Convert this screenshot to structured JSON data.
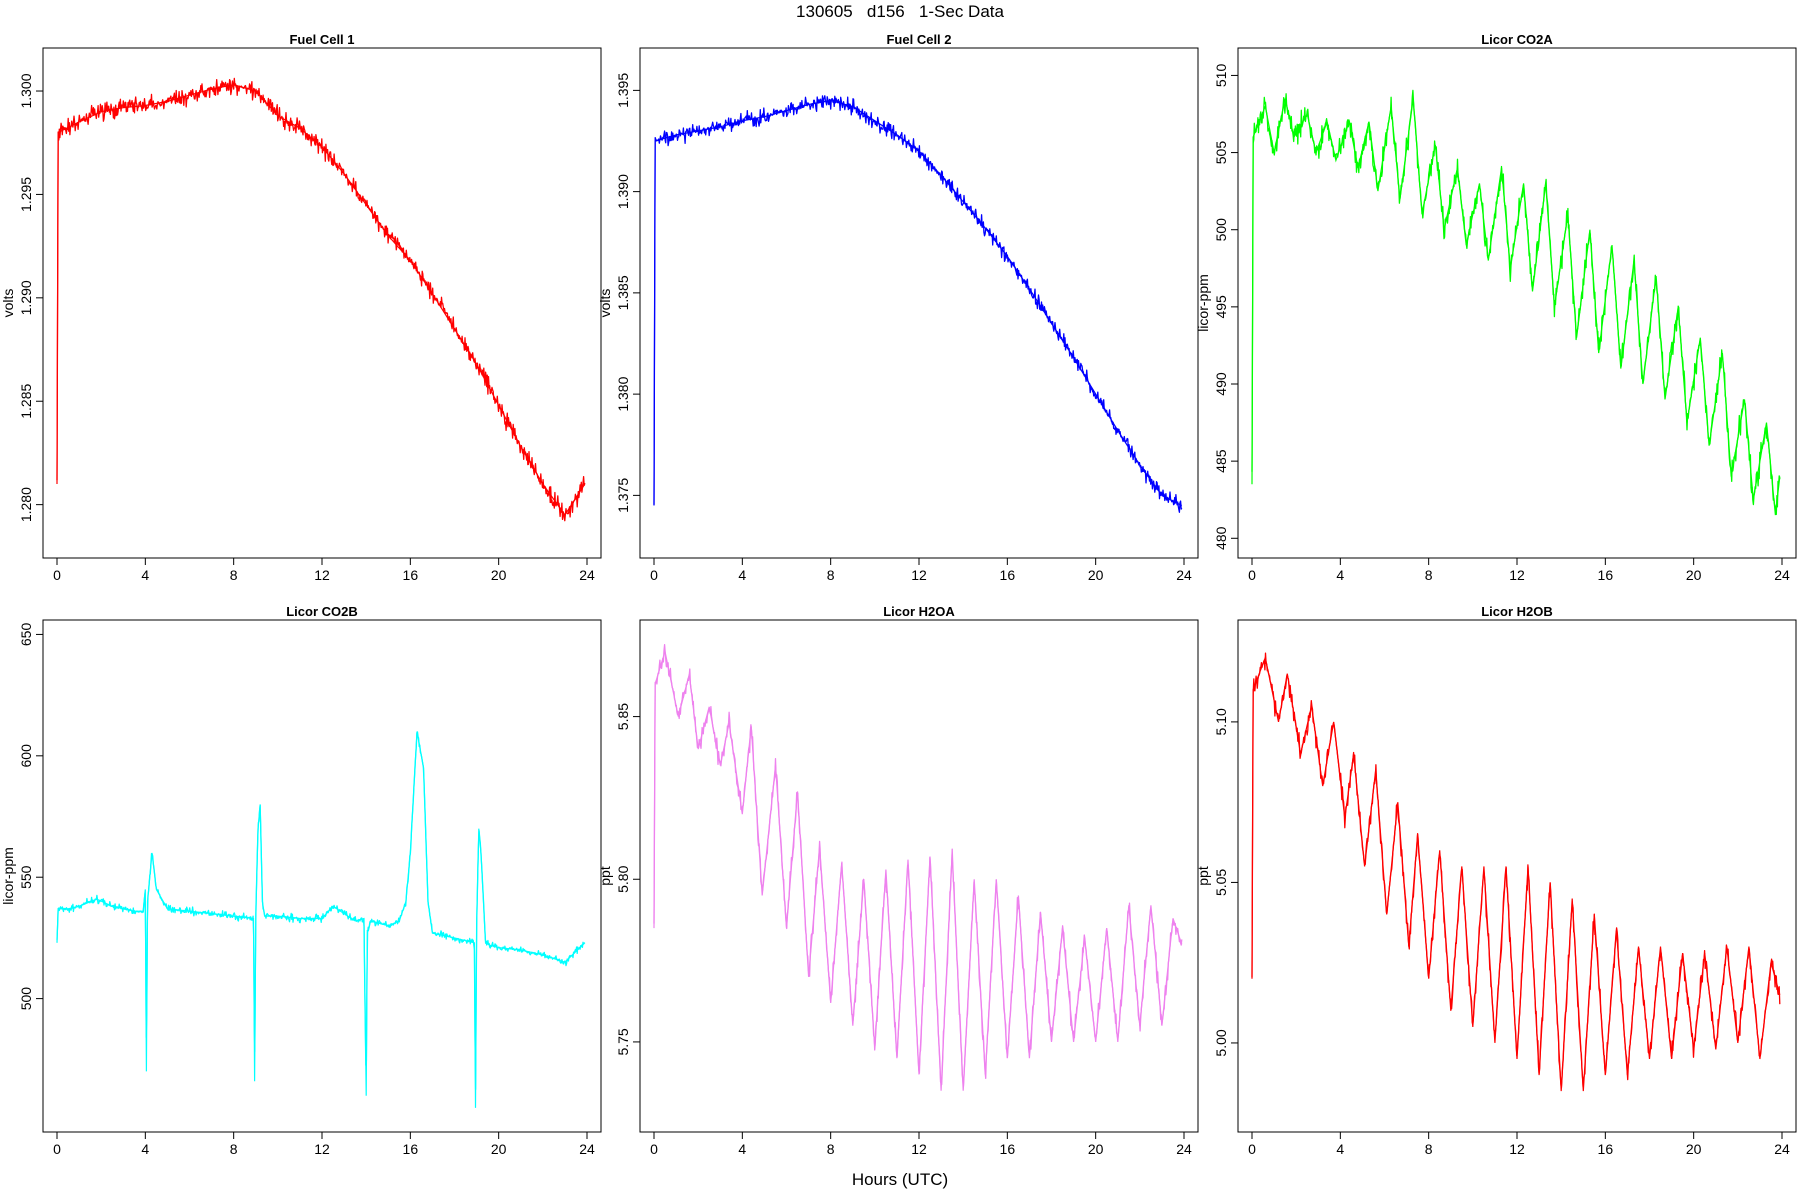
{
  "figure": {
    "title": "130605   d156   1-Sec Data",
    "xlabel": "Hours (UTC)"
  },
  "chart_data": [
    {
      "type": "line",
      "title": "Fuel Cell 1",
      "ylabel": "volts",
      "color": "#ff0000",
      "xlim": [
        0,
        24
      ],
      "ylim": [
        1.278,
        1.3015
      ],
      "xticks": [
        0,
        4,
        8,
        12,
        16,
        20,
        24
      ],
      "yticks": [
        1.28,
        1.285,
        1.29,
        1.295,
        1.3
      ],
      "ytick_labels": [
        "1.280",
        "1.285",
        "1.290",
        "1.295",
        "1.300"
      ],
      "noise": 0.0006,
      "x": [
        0,
        0.05,
        1,
        2,
        3,
        4,
        5,
        6,
        7,
        8,
        9,
        10,
        11,
        12,
        13,
        14,
        15,
        16,
        17,
        18,
        19,
        20,
        21,
        22,
        23,
        23.9
      ],
      "y": [
        1.281,
        1.298,
        1.2985,
        1.299,
        1.2992,
        1.2993,
        1.2995,
        1.2998,
        1.3001,
        1.3003,
        1.3,
        1.2988,
        1.2982,
        1.2973,
        1.296,
        1.2945,
        1.293,
        1.2918,
        1.2902,
        1.2885,
        1.2868,
        1.2848,
        1.2828,
        1.281,
        1.2795,
        1.281
      ]
    },
    {
      "type": "line",
      "title": "Fuel Cell 2",
      "ylabel": "volts",
      "color": "#0000ff",
      "xlim": [
        0,
        24
      ],
      "ylim": [
        1.3725,
        1.3965
      ],
      "xticks": [
        0,
        4,
        8,
        12,
        16,
        20,
        24
      ],
      "yticks": [
        1.375,
        1.38,
        1.385,
        1.39,
        1.395
      ],
      "ytick_labels": [
        "1.375",
        "1.380",
        "1.385",
        "1.390",
        "1.395"
      ],
      "noise": 0.0005,
      "x": [
        0,
        0.05,
        1,
        2,
        3,
        4,
        5,
        6,
        7,
        8,
        9,
        10,
        11,
        12,
        13,
        14,
        15,
        16,
        17,
        18,
        19,
        20,
        21,
        22,
        23,
        23.9
      ],
      "y": [
        1.3745,
        1.3925,
        1.3928,
        1.393,
        1.3932,
        1.3935,
        1.3937,
        1.394,
        1.3943,
        1.3945,
        1.3942,
        1.3935,
        1.3928,
        1.392,
        1.3908,
        1.3895,
        1.3882,
        1.3868,
        1.3852,
        1.3835,
        1.3818,
        1.38,
        1.3782,
        1.3765,
        1.375,
        1.3745
      ]
    },
    {
      "type": "line",
      "title": "Licor CO2A",
      "ylabel": "licor-ppm",
      "color": "#00ff00",
      "xlim": [
        0,
        24
      ],
      "ylim": [
        479.5,
        511
      ],
      "xticks": [
        0,
        4,
        8,
        12,
        16,
        20,
        24
      ],
      "yticks": [
        480,
        485,
        490,
        495,
        500,
        505,
        510
      ],
      "ytick_labels": [
        "480",
        "485",
        "490",
        "495",
        "500",
        "505",
        "510"
      ],
      "noise": 1.0,
      "x": [
        0,
        0.05,
        0.6,
        1.0,
        1.5,
        1.9,
        2.5,
        2.9,
        3.4,
        3.8,
        4.4,
        4.8,
        5.3,
        5.7,
        6.3,
        6.7,
        7.3,
        7.7,
        8.3,
        8.7,
        9.3,
        9.7,
        10.3,
        10.7,
        11.3,
        11.7,
        12.3,
        12.7,
        13.3,
        13.7,
        14.3,
        14.7,
        15.3,
        15.7,
        16.3,
        16.7,
        17.3,
        17.7,
        18.3,
        18.7,
        19.3,
        19.7,
        20.3,
        20.7,
        21.3,
        21.7,
        22.3,
        22.7,
        23.3,
        23.7,
        23.9
      ],
      "y": [
        483.5,
        506,
        508,
        505,
        508.5,
        506,
        507.5,
        505,
        507,
        504.5,
        507,
        504,
        507,
        502.5,
        508,
        502,
        508.5,
        501,
        505.5,
        500,
        504,
        499,
        503,
        498,
        504,
        497.5,
        503,
        496,
        503,
        495,
        501,
        493,
        500,
        492,
        499,
        491,
        498,
        490,
        497,
        489,
        495,
        487.5,
        493,
        486,
        492,
        484,
        489,
        482.5,
        487.5,
        481.5,
        484
      ]
    },
    {
      "type": "line",
      "title": "Licor CO2B",
      "ylabel": "licor-ppm",
      "color": "#00ffff",
      "xlim": [
        0,
        24
      ],
      "ylim": [
        450,
        651
      ],
      "xticks": [
        0,
        4,
        8,
        12,
        16,
        20,
        24
      ],
      "yticks": [
        500,
        550,
        600,
        650
      ],
      "ytick_labels": [
        "500",
        "550",
        "600",
        "650"
      ],
      "noise": 2.0,
      "x": [
        0,
        0.05,
        0.5,
        1,
        1.8,
        2.5,
        3.5,
        3.9,
        4.0,
        4.05,
        4.1,
        4.3,
        4.5,
        5.0,
        6.0,
        7.0,
        8.0,
        8.9,
        8.95,
        9.0,
        9.1,
        9.2,
        9.3,
        9.4,
        10,
        11,
        12,
        12.5,
        13.5,
        13.9,
        14.0,
        14.05,
        14.1,
        14.2,
        14.6,
        15.0,
        15.5,
        15.8,
        16.0,
        16.3,
        16.6,
        16.8,
        17.0,
        18.0,
        18.9,
        18.95,
        19.0,
        19.1,
        19.2,
        19.4,
        19.6,
        20,
        21,
        22,
        23,
        23.9
      ],
      "y": [
        523,
        537,
        537,
        538,
        541,
        538,
        536,
        536,
        545,
        470,
        540,
        560,
        545,
        537,
        536,
        535,
        534,
        533,
        466,
        534,
        570,
        580,
        540,
        534,
        534,
        533,
        533,
        538,
        532,
        533,
        460,
        528,
        528,
        532,
        531,
        530,
        532,
        540,
        560,
        610,
        595,
        540,
        527,
        525,
        523,
        455,
        530,
        570,
        560,
        524,
        522,
        521,
        520,
        518,
        515,
        523
      ]
    },
    {
      "type": "line",
      "title": "Licor H2OA",
      "ylabel": "ppt",
      "color": "#ee82ee",
      "xlim": [
        0,
        24
      ],
      "ylim": [
        5.726,
        5.876
      ],
      "xticks": [
        0,
        4,
        8,
        12,
        16,
        20,
        24
      ],
      "yticks": [
        5.75,
        5.8,
        5.85
      ],
      "ytick_labels": [
        "5.75",
        "5.80",
        "5.85"
      ],
      "noise": 0.004,
      "x": [
        0,
        0.05,
        0.5,
        1.1,
        1.6,
        2.0,
        2.5,
        3.0,
        3.4,
        4.0,
        4.4,
        4.9,
        5.5,
        6.0,
        6.5,
        7.0,
        7.5,
        8.0,
        8.5,
        9.0,
        9.5,
        10.0,
        10.5,
        11.0,
        11.5,
        12.0,
        12.5,
        13.0,
        13.5,
        14.0,
        14.5,
        15.0,
        15.5,
        16.0,
        16.5,
        17.0,
        17.5,
        18.0,
        18.5,
        19.0,
        19.5,
        20.0,
        20.5,
        21.0,
        21.5,
        22.0,
        22.5,
        23.0,
        23.5,
        23.9
      ],
      "y": [
        5.785,
        5.86,
        5.87,
        5.85,
        5.863,
        5.84,
        5.853,
        5.835,
        5.848,
        5.82,
        5.847,
        5.795,
        5.835,
        5.785,
        5.827,
        5.77,
        5.81,
        5.762,
        5.805,
        5.755,
        5.8,
        5.748,
        5.803,
        5.745,
        5.806,
        5.74,
        5.807,
        5.735,
        5.808,
        5.735,
        5.8,
        5.74,
        5.8,
        5.745,
        5.795,
        5.745,
        5.79,
        5.75,
        5.785,
        5.75,
        5.782,
        5.75,
        5.785,
        5.75,
        5.792,
        5.755,
        5.792,
        5.755,
        5.788,
        5.78
      ]
    },
    {
      "type": "line",
      "title": "Licor H2OB",
      "ylabel": "ppt",
      "color": "#ff0000",
      "xlim": [
        0,
        24
      ],
      "ylim": [
        4.976,
        5.128
      ],
      "xticks": [
        0,
        4,
        8,
        12,
        16,
        20,
        24
      ],
      "yticks": [
        5.0,
        5.05,
        5.1
      ],
      "ytick_labels": [
        "5.00",
        "5.05",
        "5.10"
      ],
      "noise": 0.004,
      "x": [
        0,
        0.05,
        0.6,
        1.2,
        1.6,
        2.2,
        2.7,
        3.2,
        3.7,
        4.2,
        4.6,
        5.1,
        5.6,
        6.1,
        6.6,
        7.1,
        7.5,
        8.0,
        8.5,
        9.0,
        9.5,
        10.0,
        10.5,
        11.0,
        11.5,
        12.0,
        12.5,
        13.0,
        13.5,
        14.0,
        14.5,
        15.0,
        15.5,
        16.0,
        16.5,
        17.0,
        17.5,
        18.0,
        18.5,
        19.0,
        19.5,
        20.0,
        20.5,
        21.0,
        21.5,
        22.0,
        22.5,
        23.0,
        23.5,
        23.9
      ],
      "y": [
        5.02,
        5.11,
        5.12,
        5.1,
        5.115,
        5.09,
        5.105,
        5.08,
        5.1,
        5.07,
        5.09,
        5.055,
        5.085,
        5.04,
        5.075,
        5.03,
        5.065,
        5.02,
        5.06,
        5.01,
        5.055,
        5.005,
        5.055,
        5.0,
        5.055,
        4.995,
        5.055,
        4.99,
        5.05,
        4.985,
        5.045,
        4.985,
        5.04,
        4.99,
        5.035,
        4.99,
        5.03,
        4.995,
        5.03,
        4.995,
        5.028,
        4.998,
        5.028,
        4.998,
        5.03,
        5.0,
        5.03,
        4.995,
        5.025,
        5.015
      ]
    }
  ]
}
